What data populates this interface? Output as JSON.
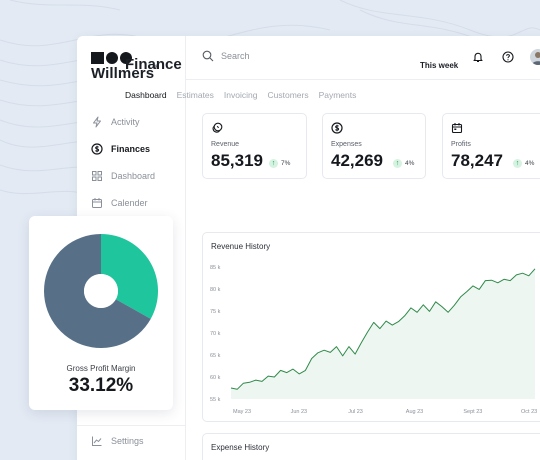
{
  "brand": {
    "name": "Willmers",
    "mark": "®"
  },
  "sidebar": {
    "items": [
      {
        "label": "Activity",
        "icon": "lightning-icon",
        "active": false
      },
      {
        "label": "Finances",
        "icon": "dollar-circle-icon",
        "active": true
      },
      {
        "label": "Dashboard",
        "icon": "grid-icon",
        "active": false
      },
      {
        "label": "Calender",
        "icon": "calendar-icon",
        "active": false
      }
    ],
    "settings_label": "Settings"
  },
  "topbar": {
    "search_placeholder": "Search",
    "icons": [
      "bell-icon",
      "help-icon",
      "avatar"
    ]
  },
  "page": {
    "title": "Finance",
    "period": "This week"
  },
  "tabs": [
    "Dashboard",
    "Estimates",
    "Invoicing",
    "Customers",
    "Payments"
  ],
  "active_tab": "Dashboard",
  "stats": [
    {
      "label": "Revenue",
      "value": "85,319",
      "change": "7%",
      "icon": "coins-icon"
    },
    {
      "label": "Expenses",
      "value": "42,269",
      "change": "4%",
      "icon": "dollar-circle-icon"
    },
    {
      "label": "Profits",
      "value": "78,247",
      "change": "4%",
      "icon": "calendar-icon"
    }
  ],
  "revenue_chart": {
    "title": "Revenue History",
    "chart_data": {
      "type": "area",
      "title": "Revenue History",
      "y_ticks": [
        "85 k",
        "80 k",
        "75 k",
        "70 k",
        "65 k",
        "60 k",
        "55 k"
      ],
      "ylim": [
        55,
        85
      ],
      "x_ticks": [
        "May 23",
        "Jun 23",
        "Jul 23",
        "Aug 23",
        "Sept 23",
        "Oct 23"
      ],
      "series": [
        {
          "values": [
            57.5,
            57.2,
            58.6,
            58.8,
            59.3,
            59.0,
            60.2,
            60.0,
            61.5,
            61.0,
            61.8,
            60.7,
            61.5,
            64.2,
            65.5,
            66.1,
            65.6,
            66.9,
            64.8,
            66.9,
            65.2,
            67.8,
            70.2,
            72.4,
            71.0,
            72.7,
            71.8,
            72.6,
            73.9,
            75.7,
            74.7,
            76.4,
            74.9,
            77.1,
            76.0,
            74.7,
            76.3,
            78.2,
            79.4,
            80.7,
            79.9,
            81.9,
            82.0,
            81.4,
            82.2,
            81.9,
            83.2,
            83.6,
            83.0,
            84.6
          ]
        }
      ],
      "line_color": "#2f8a4a",
      "area_fill": "#e8f4ec",
      "grid": false
    }
  },
  "expense_chart": {
    "title": "Expense History"
  },
  "gross_margin": {
    "label": "Gross Profit Margin",
    "value": "33.12%",
    "chart_data": {
      "type": "pie",
      "slices": [
        {
          "value": 33.12,
          "color": "#1fc59c"
        },
        {
          "value": 66.88,
          "color": "#577088"
        }
      ]
    }
  },
  "colors": {
    "accent": "#1fc59c",
    "slate": "#577088",
    "positive": "#1e9b55",
    "line": "#2f8a4a"
  }
}
